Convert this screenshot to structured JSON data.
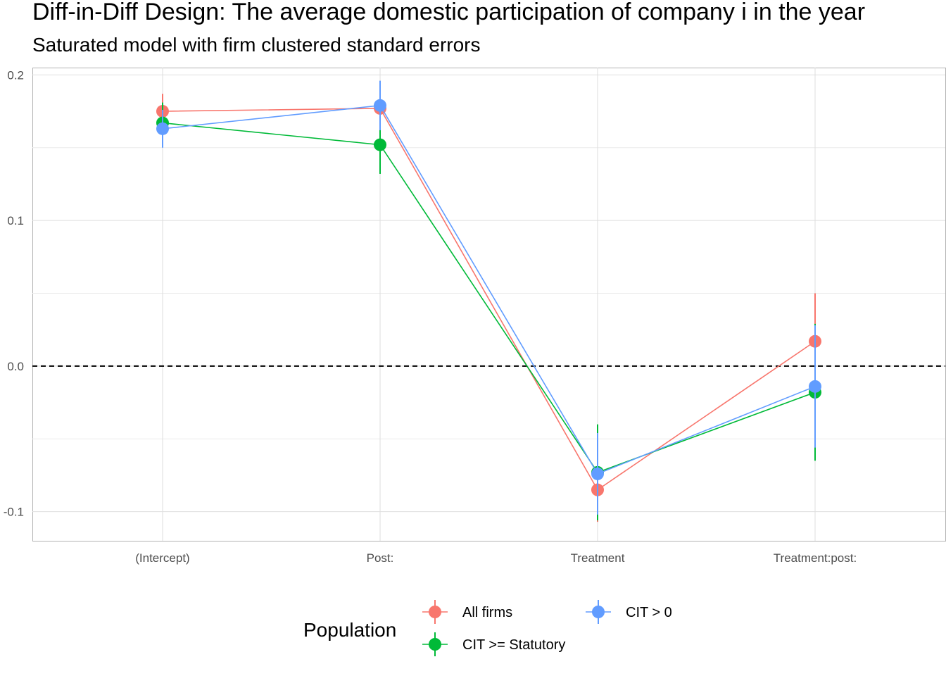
{
  "chart_data": {
    "type": "line",
    "title": "Diff-in-Diff Design: The average domestic participation of company i in the year",
    "subtitle": "Saturated model with firm clustered standard errors",
    "categories": [
      "(Intercept)",
      "Post:",
      "Treatment",
      "Treatment:post:"
    ],
    "ylim": [
      -0.12,
      0.205
    ],
    "yticks": [
      -0.1,
      0.0,
      0.1,
      0.2
    ],
    "ytick_labels": [
      "-0.1",
      "0.0",
      "0.1",
      "0.2"
    ],
    "reference_line": 0.0,
    "grid": true,
    "legend_title": "Population",
    "legend_position": "bottom",
    "series": [
      {
        "name": "All firms",
        "color": "#F8766D",
        "values": [
          0.175,
          0.177,
          -0.085,
          0.017
        ],
        "lower": [
          0.163,
          0.162,
          -0.107,
          -0.016
        ],
        "upper": [
          0.187,
          0.192,
          -0.063,
          0.05
        ]
      },
      {
        "name": "CIT >= Statutory",
        "color": "#00BA38",
        "values": [
          0.167,
          0.152,
          -0.073,
          -0.018
        ],
        "lower": [
          0.153,
          0.132,
          -0.106,
          -0.065
        ],
        "upper": [
          0.181,
          0.172,
          -0.04,
          0.029
        ]
      },
      {
        "name": "CIT > 0",
        "color": "#619CFF",
        "values": [
          0.163,
          0.179,
          -0.074,
          -0.014
        ],
        "lower": [
          0.15,
          0.162,
          -0.102,
          -0.056
        ],
        "upper": [
          0.176,
          0.196,
          -0.046,
          0.028
        ]
      }
    ]
  }
}
